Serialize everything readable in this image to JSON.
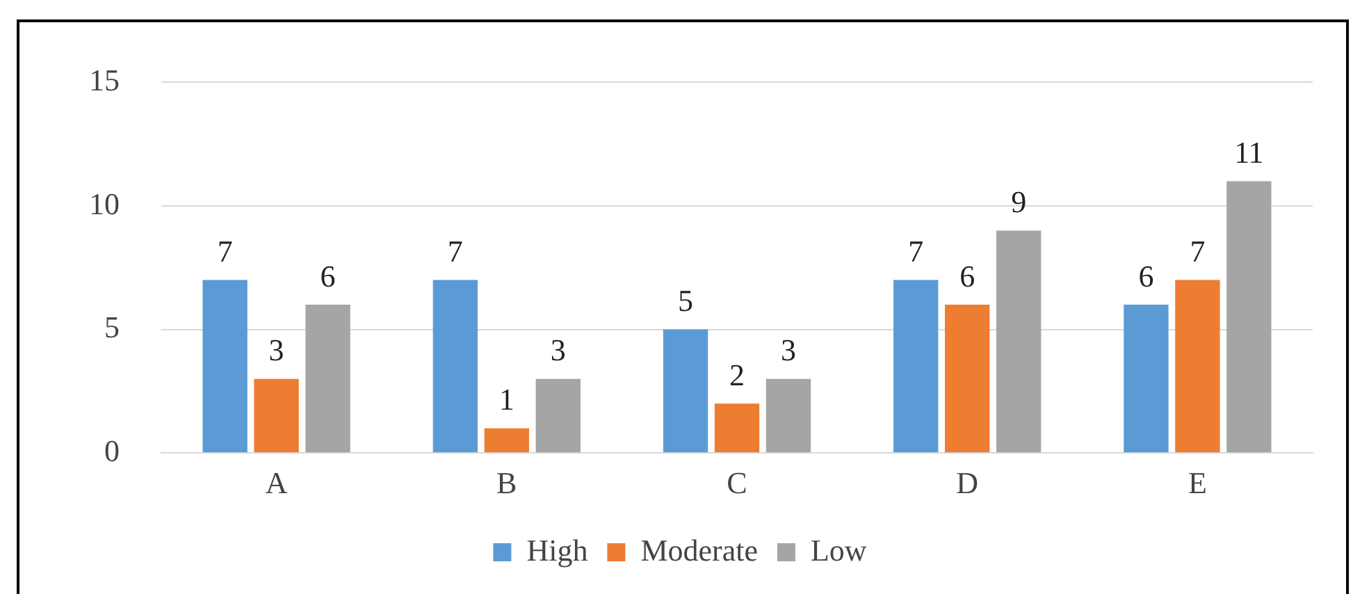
{
  "chart_data": {
    "type": "bar",
    "categories": [
      "A",
      "B",
      "C",
      "D",
      "E"
    ],
    "series": [
      {
        "name": "High",
        "color": "#5b9bd5",
        "values": [
          7,
          7,
          5,
          7,
          6
        ]
      },
      {
        "name": "Moderate",
        "color": "#ed7d31",
        "values": [
          3,
          1,
          2,
          6,
          7
        ]
      },
      {
        "name": "Low",
        "color": "#a5a5a5",
        "values": [
          6,
          3,
          3,
          9,
          11
        ]
      }
    ],
    "ylim": [
      0,
      15
    ],
    "yticks": [
      0,
      5,
      10,
      15
    ],
    "grid": "y",
    "legend": "bottom",
    "data_labels": true
  }
}
